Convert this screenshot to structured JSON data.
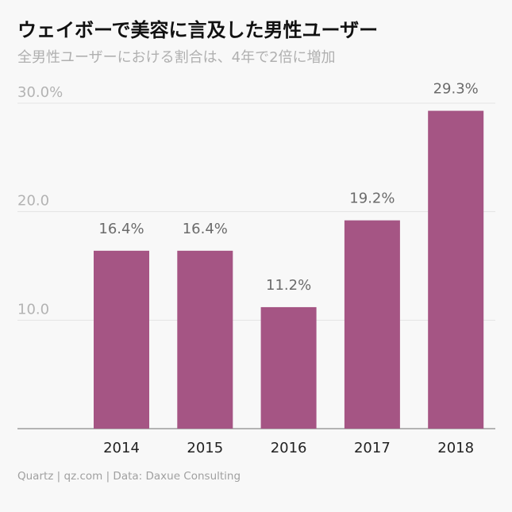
{
  "title": "ウェイボーで美容に言及した男性ユーザー",
  "subtitle": "全男性ユーザーにおける割合は、4年で2倍に増加",
  "footer": "Quartz | qz.com | Data: Daxue Consulting",
  "colors": {
    "bar": "#a55584",
    "grid": "#e4e4e4",
    "axis": "#8a8a8a",
    "background": "#f8f8f8"
  },
  "chart_data": {
    "type": "bar",
    "categories": [
      "2014",
      "2015",
      "2016",
      "2017",
      "2018"
    ],
    "values": [
      16.4,
      16.4,
      11.2,
      19.2,
      29.3
    ],
    "value_labels": [
      "16.4%",
      "16.4%",
      "11.2%",
      "19.2%",
      "29.3%"
    ],
    "ylim": [
      0,
      30
    ],
    "yticks": [
      10,
      20,
      30
    ],
    "ytick_labels": [
      "10.0",
      "20.0",
      "30.0%"
    ],
    "grid": true,
    "xlabel": "",
    "ylabel": ""
  }
}
